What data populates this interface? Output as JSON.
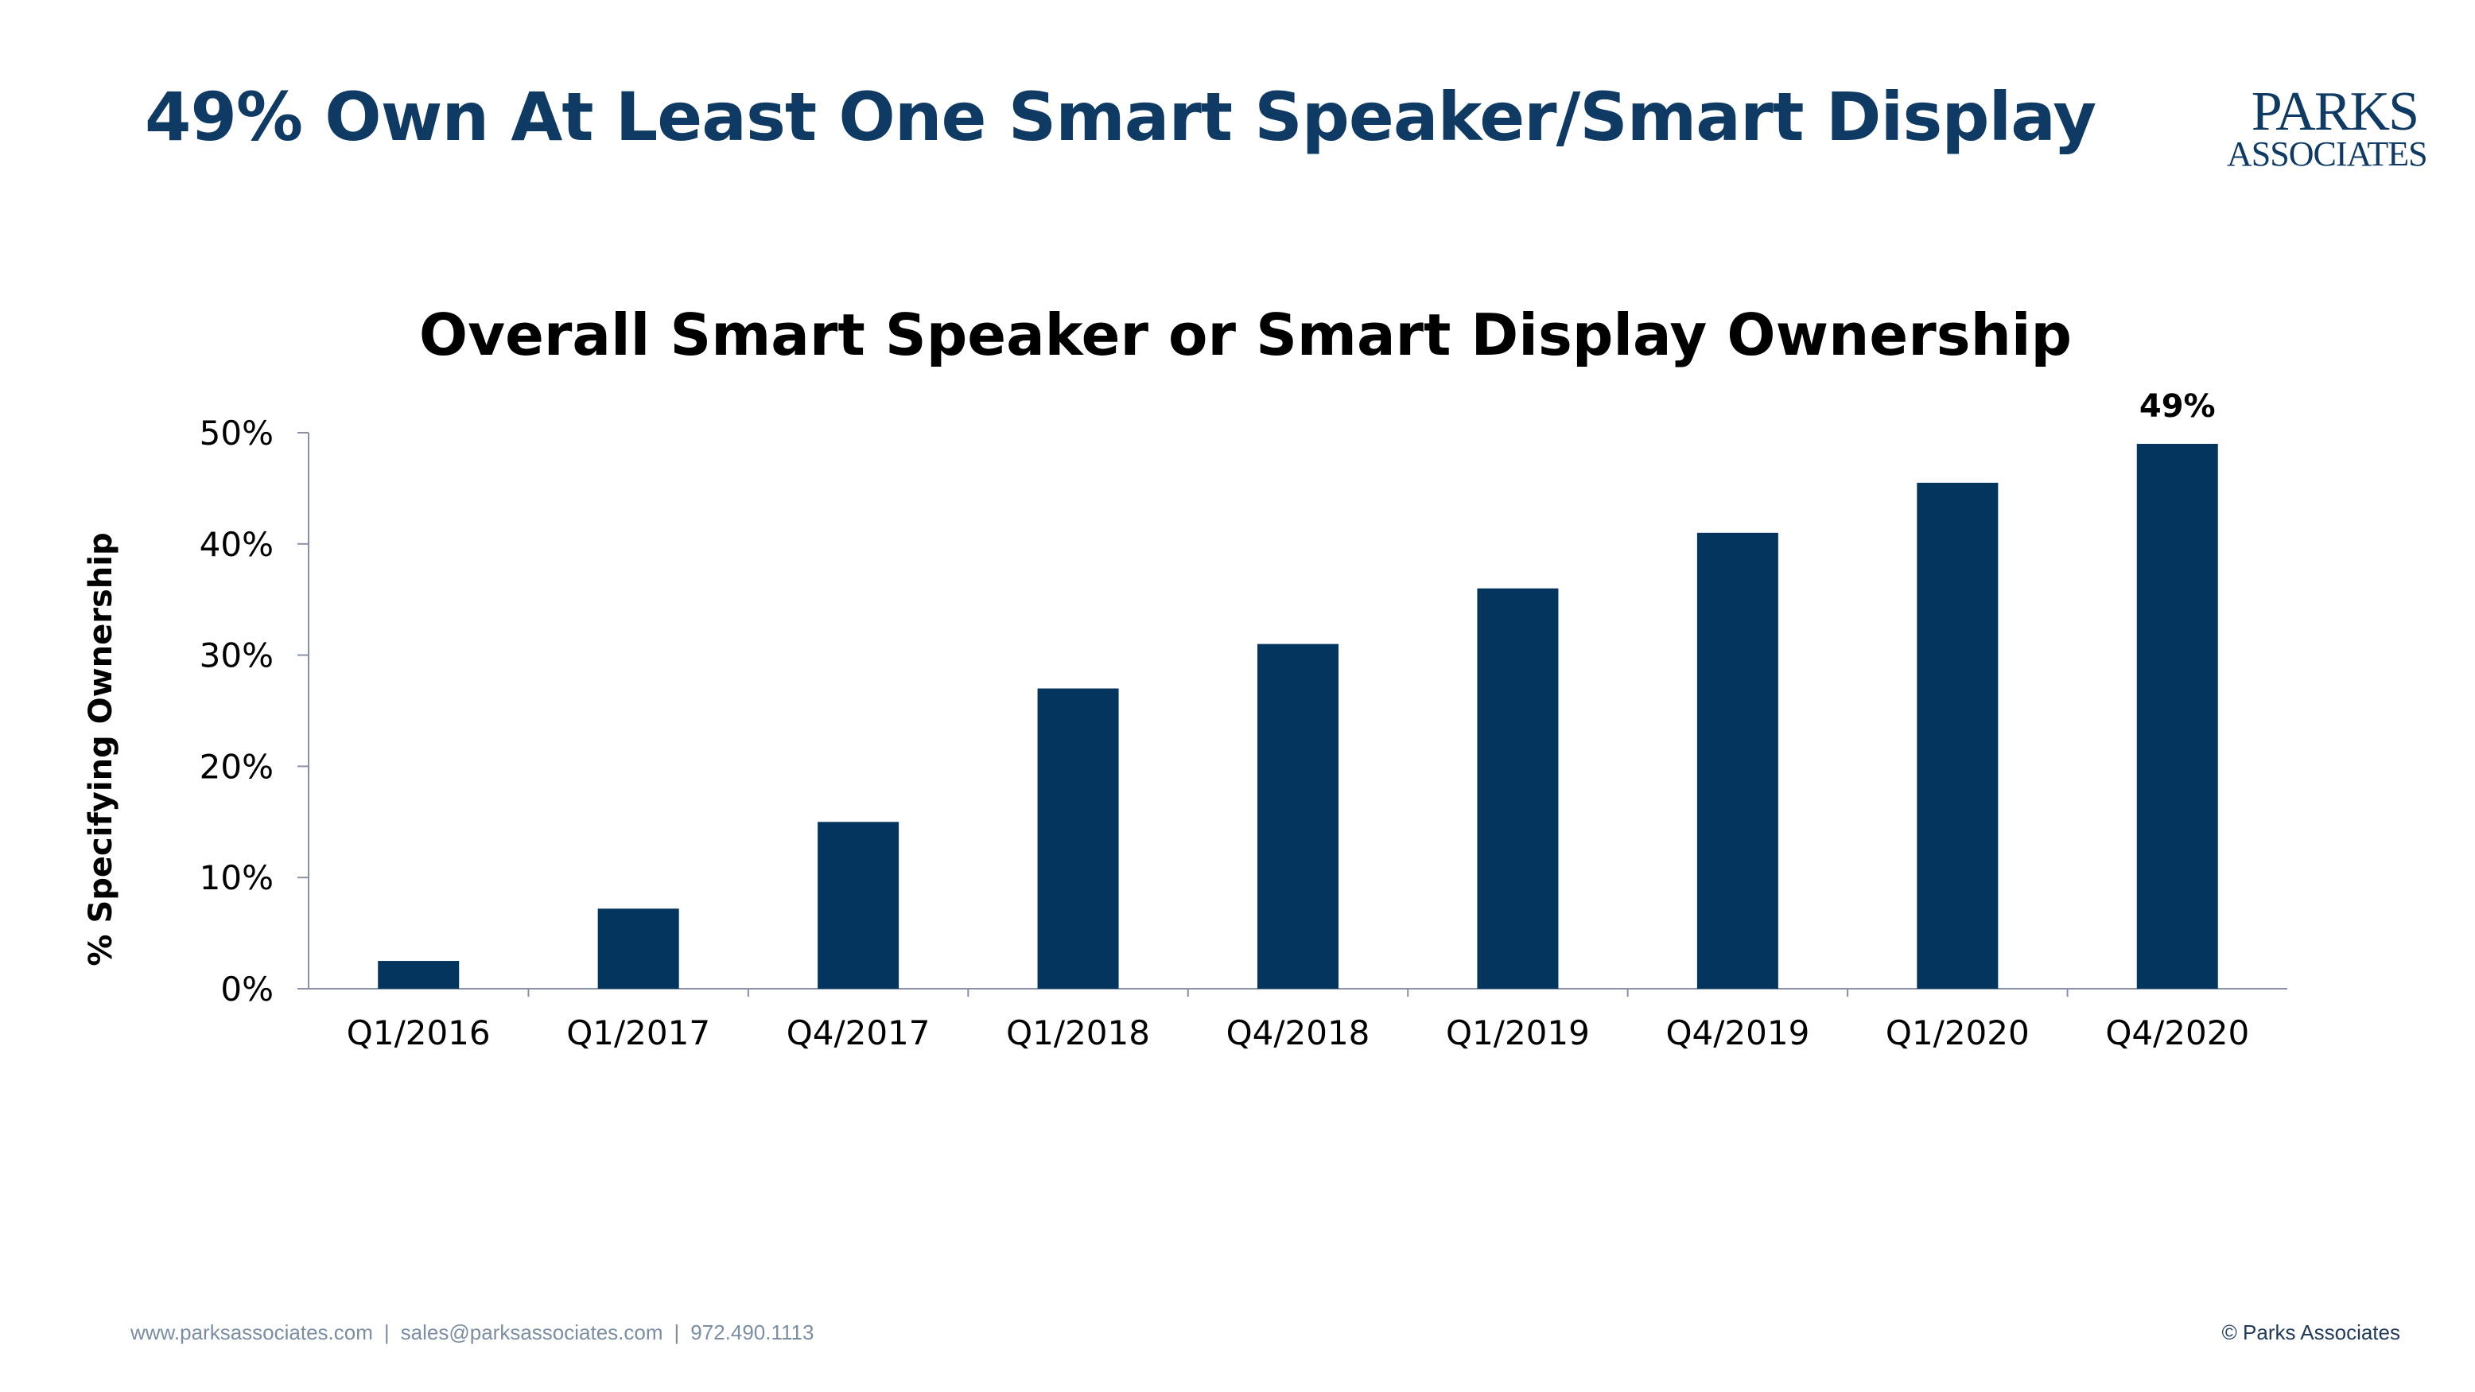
{
  "slide": {
    "title": "49% Own At Least One Smart Speaker/Smart Display"
  },
  "logo": {
    "line1": "PARKS",
    "line2": "ASSOCIATES"
  },
  "footer": {
    "website": "www.parksassociates.com",
    "email": "sales@parksassociates.com",
    "phone": "972.490.1113",
    "separator": "|",
    "copyright": "© Parks Associates"
  },
  "colors": {
    "title": "#0e3a63",
    "bar": "#03355f",
    "axis": "#8a8fa8",
    "text": "#000000"
  },
  "chart_data": {
    "type": "bar",
    "title": "Overall Smart Speaker or Smart Display Ownership",
    "xlabel": "",
    "ylabel": "% Specifying Ownership",
    "categories": [
      "Q1/2016",
      "Q1/2017",
      "Q4/2017",
      "Q1/2018",
      "Q4/2018",
      "Q1/2019",
      "Q4/2019",
      "Q1/2020",
      "Q4/2020"
    ],
    "values": [
      2.5,
      7.2,
      15,
      27,
      31,
      36,
      41,
      45.5,
      49
    ],
    "yticks": [
      "0%",
      "10%",
      "20%",
      "30%",
      "40%",
      "50%"
    ],
    "ylim": [
      0,
      50
    ],
    "grid": false,
    "data_labels": [
      {
        "category": "Q4/2020",
        "text": "49%"
      }
    ]
  }
}
